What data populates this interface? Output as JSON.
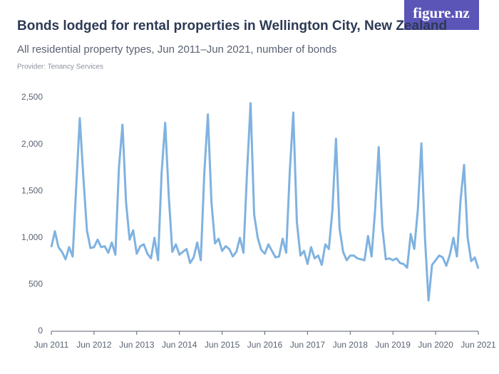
{
  "chart_data": {
    "type": "line",
    "title": "Bonds lodged for rental properties in Wellington City, New Zealand",
    "subtitle": "All residential property types, Jun 2011–Jun 2021, number of bonds",
    "provider": "Provider: Tenancy Services",
    "logo": "figure.nz",
    "color": "#7fb2e0",
    "categories": [
      "Jun 2011",
      null,
      null,
      null,
      null,
      null,
      null,
      null,
      null,
      null,
      null,
      null,
      "Jun 2012",
      null,
      null,
      null,
      null,
      null,
      null,
      null,
      null,
      null,
      null,
      null,
      "Jun 2013",
      null,
      null,
      null,
      null,
      null,
      null,
      null,
      null,
      null,
      null,
      null,
      "Jun 2014",
      null,
      null,
      null,
      null,
      null,
      null,
      null,
      null,
      null,
      null,
      null,
      "Jun 2015",
      null,
      null,
      null,
      null,
      null,
      null,
      null,
      null,
      null,
      null,
      null,
      "Jun 2016",
      null,
      null,
      null,
      null,
      null,
      null,
      null,
      null,
      null,
      null,
      null,
      "Jun 2017",
      null,
      null,
      null,
      null,
      null,
      null,
      null,
      null,
      null,
      null,
      null,
      "Jun 2018",
      null,
      null,
      null,
      null,
      null,
      null,
      null,
      null,
      null,
      null,
      null,
      "Jun 2019",
      null,
      null,
      null,
      null,
      null,
      null,
      null,
      null,
      null,
      null,
      null,
      "Jun 2020",
      null,
      null,
      null,
      null,
      null,
      null,
      null,
      null,
      null,
      null,
      null,
      "Jun 2021"
    ],
    "values": [
      900,
      1070,
      900,
      850,
      770,
      900,
      800,
      1550,
      2280,
      1650,
      1080,
      890,
      900,
      980,
      900,
      910,
      840,
      950,
      820,
      1750,
      2210,
      1380,
      980,
      1080,
      830,
      910,
      930,
      830,
      780,
      1000,
      760,
      1700,
      2230,
      1450,
      850,
      930,
      820,
      850,
      880,
      730,
      790,
      950,
      760,
      1700,
      2320,
      1380,
      940,
      990,
      860,
      910,
      880,
      800,
      850,
      1000,
      840,
      1700,
      2440,
      1250,
      1000,
      870,
      830,
      930,
      860,
      790,
      800,
      990,
      840,
      1700,
      2340,
      1170,
      810,
      860,
      720,
      900,
      780,
      810,
      710,
      930,
      880,
      1300,
      2060,
      1100,
      850,
      760,
      810,
      810,
      780,
      770,
      760,
      1020,
      800,
      1300,
      1970,
      1120,
      770,
      780,
      760,
      780,
      730,
      720,
      680,
      1040,
      880,
      1300,
      2010,
      1000,
      330,
      710,
      760,
      810,
      790,
      700,
      820,
      1000,
      800,
      1400,
      1780,
      1000,
      750,
      790,
      670
    ],
    "ylim": [
      0,
      2500
    ],
    "yticks": [
      0,
      500,
      {
        "value": 1000,
        "label": "1,000"
      },
      {
        "value": 1500,
        "label": "1,500"
      },
      {
        "value": 2000,
        "label": "2,000"
      },
      {
        "value": 2500,
        "label": "2,500"
      }
    ]
  }
}
